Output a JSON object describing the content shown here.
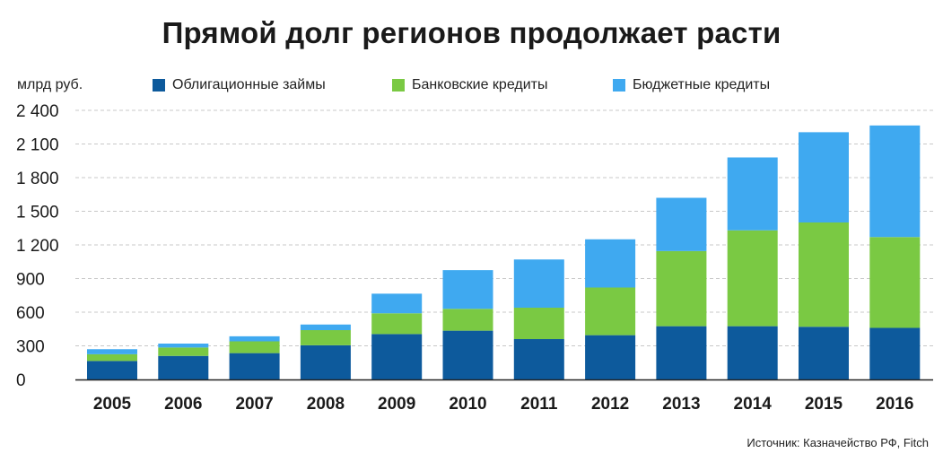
{
  "chart_data": {
    "type": "bar",
    "stacked": true,
    "title": "Прямой долг регионов продолжает расти",
    "ylabel": "млрд руб.",
    "xlabel": "",
    "categories": [
      "2005",
      "2006",
      "2007",
      "2008",
      "2009",
      "2010",
      "2011",
      "2012",
      "2013",
      "2014",
      "2015",
      "2016"
    ],
    "ylim": [
      0,
      2400
    ],
    "yticks": [
      {
        "value": 0,
        "label": "0"
      },
      {
        "value": 300,
        "label": "300"
      },
      {
        "value": 600,
        "label": "600"
      },
      {
        "value": 900,
        "label": "900"
      },
      {
        "value": 1200,
        "label": "1 200"
      },
      {
        "value": 1500,
        "label": "1 500"
      },
      {
        "value": 1800,
        "label": "1 800"
      },
      {
        "value": 2100,
        "label": "2 100"
      },
      {
        "value": 2400,
        "label": "2 400"
      }
    ],
    "grid": true,
    "legend_position": "top",
    "series": [
      {
        "name": "Облигационные займы",
        "color": "#0d5a9c",
        "values": [
          165,
          210,
          235,
          305,
          405,
          435,
          360,
          395,
          475,
          475,
          470,
          460
        ]
      },
      {
        "name": "Банковские кредиты",
        "color": "#7ac943",
        "values": [
          60,
          75,
          105,
          135,
          185,
          195,
          280,
          425,
          670,
          855,
          930,
          810
        ]
      },
      {
        "name": "Бюджетные кредиты",
        "color": "#3fa9f0",
        "values": [
          45,
          35,
          45,
          50,
          175,
          345,
          430,
          430,
          475,
          650,
          805,
          995
        ]
      }
    ]
  },
  "source": "Источник: Казначейство РФ, Fitch"
}
